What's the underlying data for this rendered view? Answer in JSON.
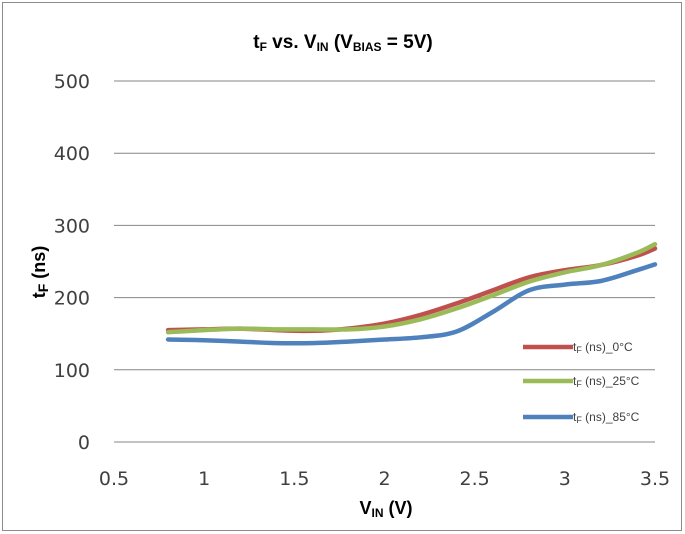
{
  "chart_data": {
    "type": "line",
    "title": {
      "main": "t",
      "main_sub": "F",
      "vs": " vs. V",
      "vs_sub": "IN",
      "paren_open": " (V",
      "paren_sub": "BIAS",
      "paren_close": " = 5V)"
    },
    "xlabel": {
      "main": "V",
      "sub": "IN",
      "rest": " (V)"
    },
    "ylabel": {
      "main": "t",
      "sub": "F",
      "rest": " (ns)"
    },
    "xlim": [
      0.5,
      3.5
    ],
    "ylim": [
      0,
      500
    ],
    "xticks": [
      "0.5",
      "1",
      "1.5",
      "2",
      "2.5",
      "3",
      "3.5"
    ],
    "yticks": [
      "0",
      "100",
      "200",
      "300",
      "400",
      "500"
    ],
    "grid": true,
    "legend_position": "right",
    "series": [
      {
        "name": "tF (ns)_0°C",
        "label_main": "t",
        "label_sub": "F",
        "label_rest": " (ns)_0°C",
        "color": "#c0504d",
        "x": [
          0.8,
          1.0,
          1.2,
          1.4,
          1.6,
          1.8,
          2.0,
          2.2,
          2.4,
          2.6,
          2.8,
          3.0,
          3.2,
          3.4,
          3.5
        ],
        "y": [
          155,
          156,
          157,
          155,
          154,
          157,
          164,
          176,
          192,
          210,
          228,
          238,
          245,
          258,
          268
        ]
      },
      {
        "name": "tF (ns)_25°C",
        "label_main": "t",
        "label_sub": "F",
        "label_rest": " (ns)_25°C",
        "color": "#9bbb59",
        "x": [
          0.8,
          1.0,
          1.2,
          1.4,
          1.6,
          1.8,
          2.0,
          2.2,
          2.4,
          2.6,
          2.8,
          3.0,
          3.2,
          3.4,
          3.5
        ],
        "y": [
          152,
          155,
          157,
          156,
          156,
          156,
          160,
          170,
          185,
          203,
          222,
          235,
          245,
          262,
          274
        ]
      },
      {
        "name": "tF (ns)_85°C",
        "label_main": "t",
        "label_sub": "F",
        "label_rest": " (ns)_85°C",
        "color": "#4f81bd",
        "x": [
          0.8,
          1.0,
          1.2,
          1.4,
          1.6,
          1.8,
          2.0,
          2.2,
          2.4,
          2.6,
          2.8,
          3.0,
          3.2,
          3.4,
          3.5
        ],
        "y": [
          142,
          141,
          139,
          137,
          137,
          139,
          142,
          145,
          153,
          180,
          210,
          218,
          223,
          238,
          246
        ]
      }
    ]
  }
}
